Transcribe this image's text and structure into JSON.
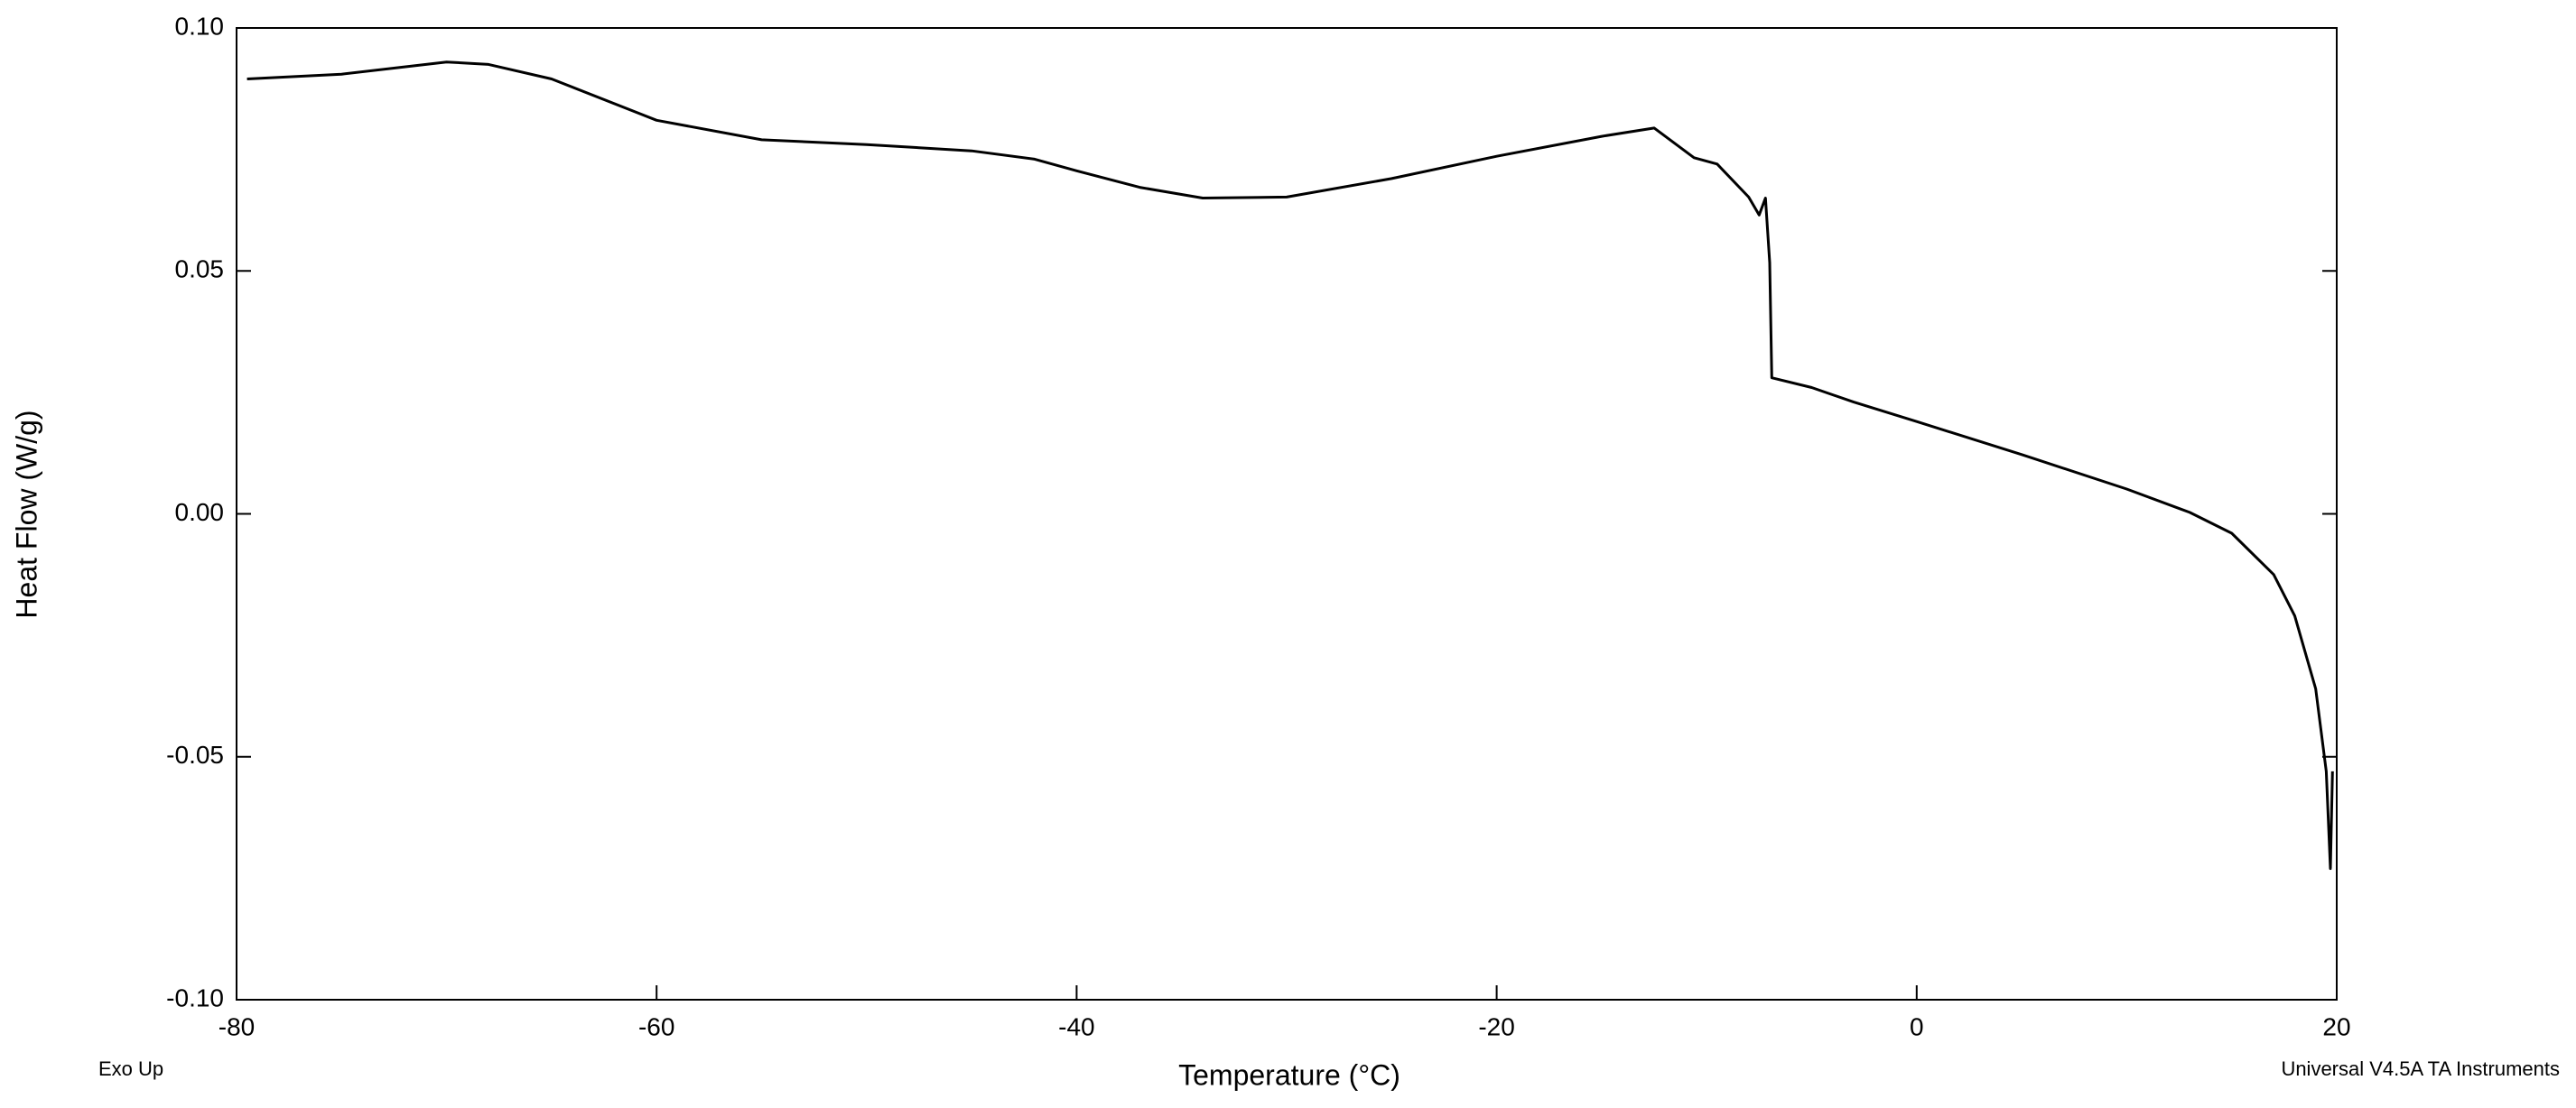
{
  "chart_data": {
    "type": "line",
    "xlabel": "Temperature (°C)",
    "ylabel": "Heat Flow (W/g)",
    "note_left": "Exo Up",
    "note_right": "Universal V4.5A TA Instruments",
    "x": [
      -79.5,
      -75,
      -72,
      -70,
      -68,
      -65,
      -60,
      -55,
      -50,
      -45,
      -42,
      -40,
      -37,
      -34,
      -30,
      -25,
      -20,
      -15,
      -12.5,
      -10.6,
      -9.5,
      -8,
      -7.5,
      -7.2,
      -7.0,
      -6.9,
      -5,
      -3,
      0,
      5,
      10,
      13,
      15,
      17,
      18,
      19,
      19.5,
      19.7,
      19.8
    ],
    "values": [
      0.0895,
      0.0905,
      0.092,
      0.093,
      0.0925,
      0.0895,
      0.081,
      0.077,
      0.076,
      0.0747,
      0.073,
      0.0706,
      0.0672,
      0.065,
      0.0652,
      0.069,
      0.0736,
      0.0777,
      0.0794,
      0.0733,
      0.072,
      0.0652,
      0.0615,
      0.065,
      0.0517,
      0.028,
      0.026,
      0.023,
      0.019,
      0.0122,
      0.0051,
      0.0003,
      -0.004,
      -0.0125,
      -0.021,
      -0.036,
      -0.053,
      -0.073,
      -0.053
    ],
    "color": "#000000",
    "xlim": [
      -80,
      20
    ],
    "xticks": [
      -80,
      -60,
      -40,
      -20,
      0,
      20
    ],
    "ylim": [
      -0.1,
      0.1
    ],
    "yticks": [
      {
        "value": -0.1,
        "label": "-0.10"
      },
      -0.05,
      {
        "value": 0,
        "label": "0.00"
      },
      0.05,
      {
        "value": 0.1,
        "label": "0.10"
      }
    ],
    "grid": false
  }
}
